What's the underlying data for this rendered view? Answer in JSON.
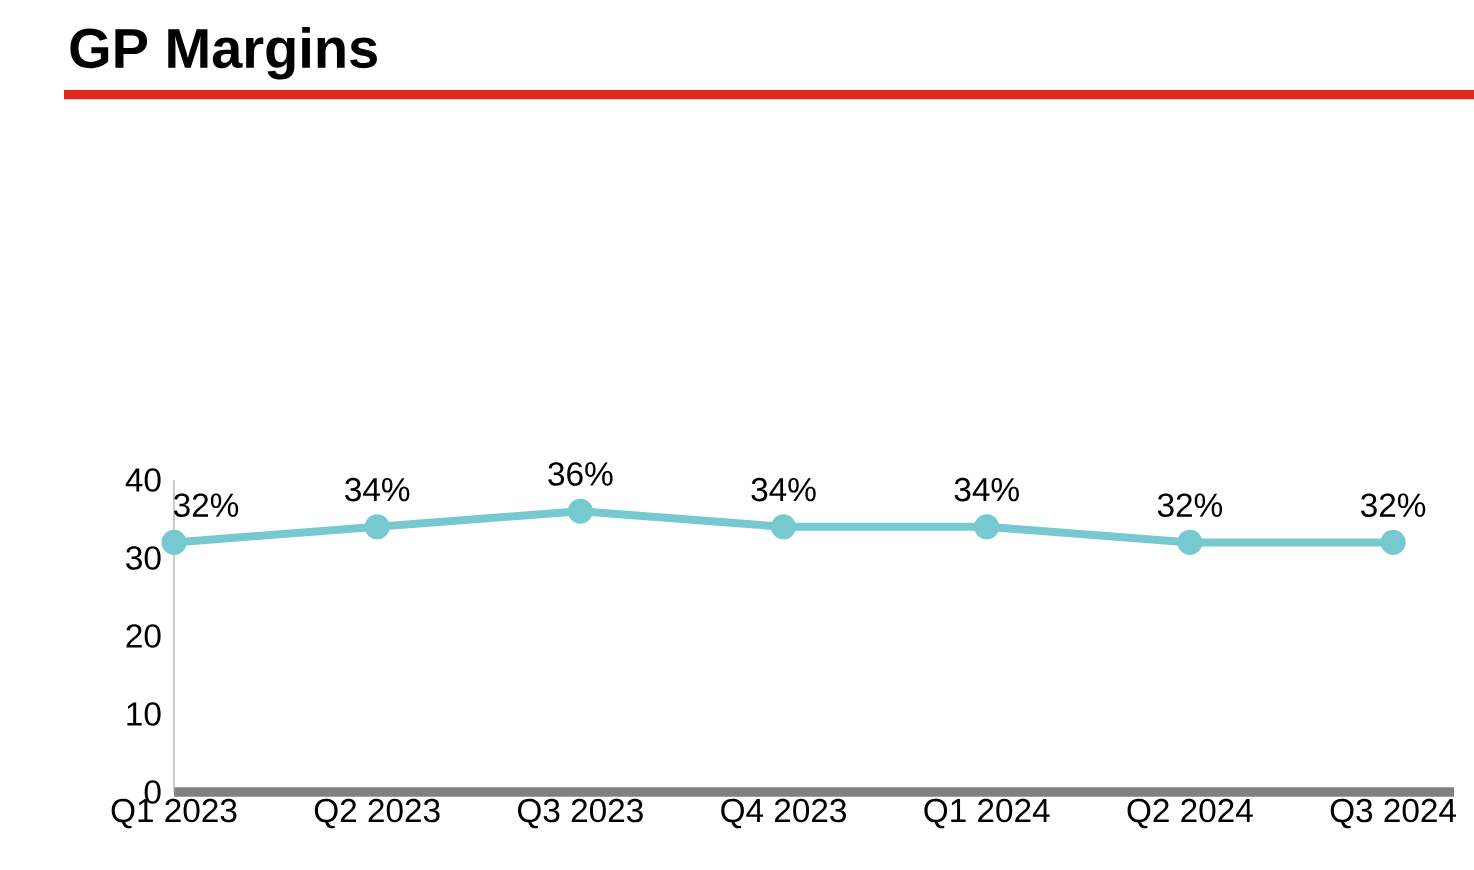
{
  "chart_data": {
    "type": "line",
    "title": "GP Margins",
    "categories": [
      "Q1 2023",
      "Q2 2023",
      "Q3 2023",
      "Q4 2023",
      "Q1 2024",
      "Q2 2024",
      "Q3 2024"
    ],
    "series": [
      {
        "color": "#76c9cf",
        "values": [
          32,
          34,
          36,
          34,
          34,
          32,
          32
        ],
        "value_labels": [
          "32%",
          "34%",
          "36%",
          "34%",
          "34%",
          "32%",
          "32%"
        ]
      }
    ],
    "ylim": [
      0,
      40
    ],
    "yticks": [
      0,
      10,
      20,
      30,
      40
    ],
    "marker": "circle",
    "line_style": "solid"
  }
}
